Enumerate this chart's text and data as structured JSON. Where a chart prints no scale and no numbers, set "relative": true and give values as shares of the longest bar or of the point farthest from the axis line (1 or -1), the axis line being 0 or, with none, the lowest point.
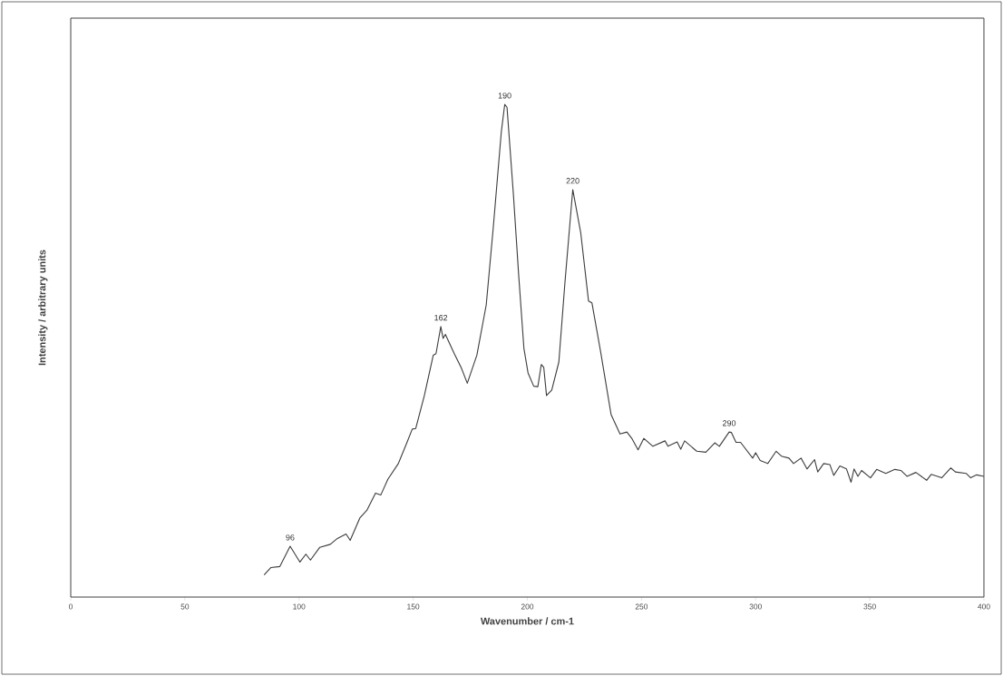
{
  "chart_data": {
    "type": "line",
    "relative": true,
    "xlabel": "Wavenumber / cm-1",
    "ylabel": "Intensity / arbitrary units",
    "xlim": [
      0,
      400
    ],
    "xticks": [
      0,
      50,
      100,
      150,
      200,
      250,
      300,
      350,
      400
    ],
    "grid": false,
    "marker": "none",
    "line_style": "solid",
    "x": [
      84.7,
      87.7,
      91.6,
      96.1,
      100.4,
      103.0,
      105.0,
      109.1,
      113.7,
      116.8,
      120.6,
      122.4,
      126.7,
      129.7,
      133.5,
      135.8,
      138.9,
      143.5,
      147.3,
      149.6,
      151.1,
      154.9,
      158.8,
      160.0,
      162.1,
      163.1,
      164.1,
      168.0,
      171.0,
      173.7,
      177.9,
      182.0,
      185.0,
      188.6,
      190.1,
      191.1,
      193.9,
      196.2,
      198.5,
      200.3,
      202.8,
      204.6,
      206.1,
      207.2,
      208.4,
      210.7,
      213.8,
      216.5,
      219.9,
      223.4,
      226.8,
      228.3,
      232.1,
      236.7,
      240.6,
      243.6,
      245.9,
      248.5,
      251.0,
      255.0,
      260.3,
      261.6,
      265.6,
      267.2,
      268.9,
      274.2,
      278.2,
      282.1,
      284.1,
      288.4,
      289.4,
      291.4,
      293.4,
      298.7,
      300.0,
      302.0,
      305.3,
      309.0,
      311.3,
      314.6,
      316.6,
      319.9,
      322.5,
      325.8,
      327.2,
      329.8,
      332.5,
      334.2,
      336.9,
      339.8,
      341.8,
      343.1,
      344.8,
      346.4,
      350.3,
      353.0,
      357.0,
      361.0,
      363.6,
      366.3,
      370.2,
      374.9,
      376.9,
      381.5,
      385.5,
      387.5,
      392.2,
      394.2,
      396.8,
      400.0
    ],
    "series": [
      {
        "color": "#3c3c3c",
        "values": [
          0.045,
          0.06,
          0.062,
          0.103,
          0.071,
          0.087,
          0.075,
          0.101,
          0.107,
          0.119,
          0.128,
          0.115,
          0.161,
          0.176,
          0.211,
          0.207,
          0.239,
          0.271,
          0.314,
          0.341,
          0.342,
          0.409,
          0.491,
          0.494,
          0.549,
          0.525,
          0.533,
          0.494,
          0.466,
          0.434,
          0.491,
          0.593,
          0.746,
          0.944,
          1.0,
          0.994,
          0.817,
          0.654,
          0.505,
          0.455,
          0.428,
          0.427,
          0.472,
          0.466,
          0.409,
          0.42,
          0.477,
          0.64,
          0.827,
          0.739,
          0.601,
          0.597,
          0.498,
          0.37,
          0.331,
          0.335,
          0.321,
          0.299,
          0.322,
          0.306,
          0.317,
          0.306,
          0.315,
          0.3,
          0.317,
          0.296,
          0.294,
          0.313,
          0.306,
          0.335,
          0.334,
          0.314,
          0.314,
          0.282,
          0.293,
          0.277,
          0.271,
          0.296,
          0.286,
          0.282,
          0.271,
          0.282,
          0.26,
          0.279,
          0.254,
          0.271,
          0.269,
          0.247,
          0.266,
          0.26,
          0.233,
          0.26,
          0.245,
          0.257,
          0.242,
          0.259,
          0.251,
          0.259,
          0.257,
          0.245,
          0.253,
          0.237,
          0.249,
          0.242,
          0.262,
          0.254,
          0.251,
          0.242,
          0.248,
          0.245
        ]
      }
    ],
    "annotations": [
      {
        "text": "96",
        "x": 96.1,
        "y": 0.103
      },
      {
        "text": "162",
        "x": 162.1,
        "y": 0.549
      },
      {
        "text": "190",
        "x": 190.1,
        "y": 1.0
      },
      {
        "text": "220",
        "x": 219.9,
        "y": 0.827
      },
      {
        "text": "290",
        "x": 288.4,
        "y": 0.335
      }
    ]
  }
}
